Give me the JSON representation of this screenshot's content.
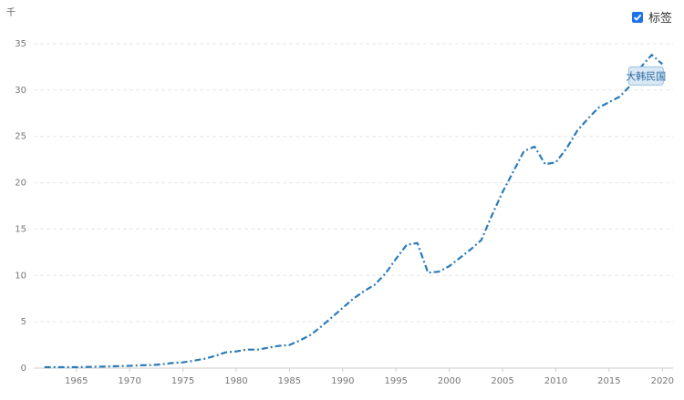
{
  "unit_label": "千",
  "legend_toggle": {
    "label": "标签",
    "checked": true
  },
  "chart_data": {
    "type": "line",
    "title": "",
    "xlabel": "",
    "ylabel": "千",
    "xlim": [
      1961,
      2021
    ],
    "ylim": [
      0,
      35
    ],
    "x_ticks": [
      1965,
      1970,
      1975,
      1980,
      1985,
      1990,
      1995,
      2000,
      2005,
      2010,
      2015,
      2020
    ],
    "y_ticks": [
      0,
      5,
      10,
      15,
      20,
      25,
      30,
      35
    ],
    "grid": true,
    "line_style": "dash-dot",
    "series": [
      {
        "name": "大韩民国",
        "color": "#2b7bba",
        "x": [
          1962,
          1963,
          1964,
          1965,
          1966,
          1967,
          1968,
          1969,
          1970,
          1971,
          1972,
          1973,
          1974,
          1975,
          1976,
          1977,
          1978,
          1979,
          1980,
          1981,
          1982,
          1983,
          1984,
          1985,
          1986,
          1987,
          1988,
          1989,
          1990,
          1991,
          1992,
          1993,
          1994,
          1995,
          1996,
          1997,
          1998,
          1999,
          2000,
          2001,
          2002,
          2003,
          2004,
          2005,
          2006,
          2007,
          2008,
          2009,
          2010,
          2011,
          2012,
          2013,
          2014,
          2015,
          2016,
          2017,
          2018,
          2019,
          2020
        ],
        "values": [
          0.1,
          0.1,
          0.1,
          0.1,
          0.13,
          0.15,
          0.18,
          0.22,
          0.25,
          0.3,
          0.32,
          0.4,
          0.55,
          0.62,
          0.8,
          1.0,
          1.3,
          1.7,
          1.8,
          2.0,
          2.0,
          2.2,
          2.4,
          2.5,
          3.0,
          3.6,
          4.5,
          5.5,
          6.5,
          7.5,
          8.3,
          9.0,
          10.2,
          11.8,
          13.3,
          13.5,
          10.3,
          10.4,
          11.0,
          11.9,
          12.8,
          13.8,
          16.5,
          19.0,
          21.2,
          23.4,
          23.9,
          22.0,
          22.2,
          23.7,
          25.6,
          26.9,
          28.1,
          28.7,
          29.3,
          30.5,
          32.5,
          33.8,
          32.8
        ]
      }
    ]
  }
}
